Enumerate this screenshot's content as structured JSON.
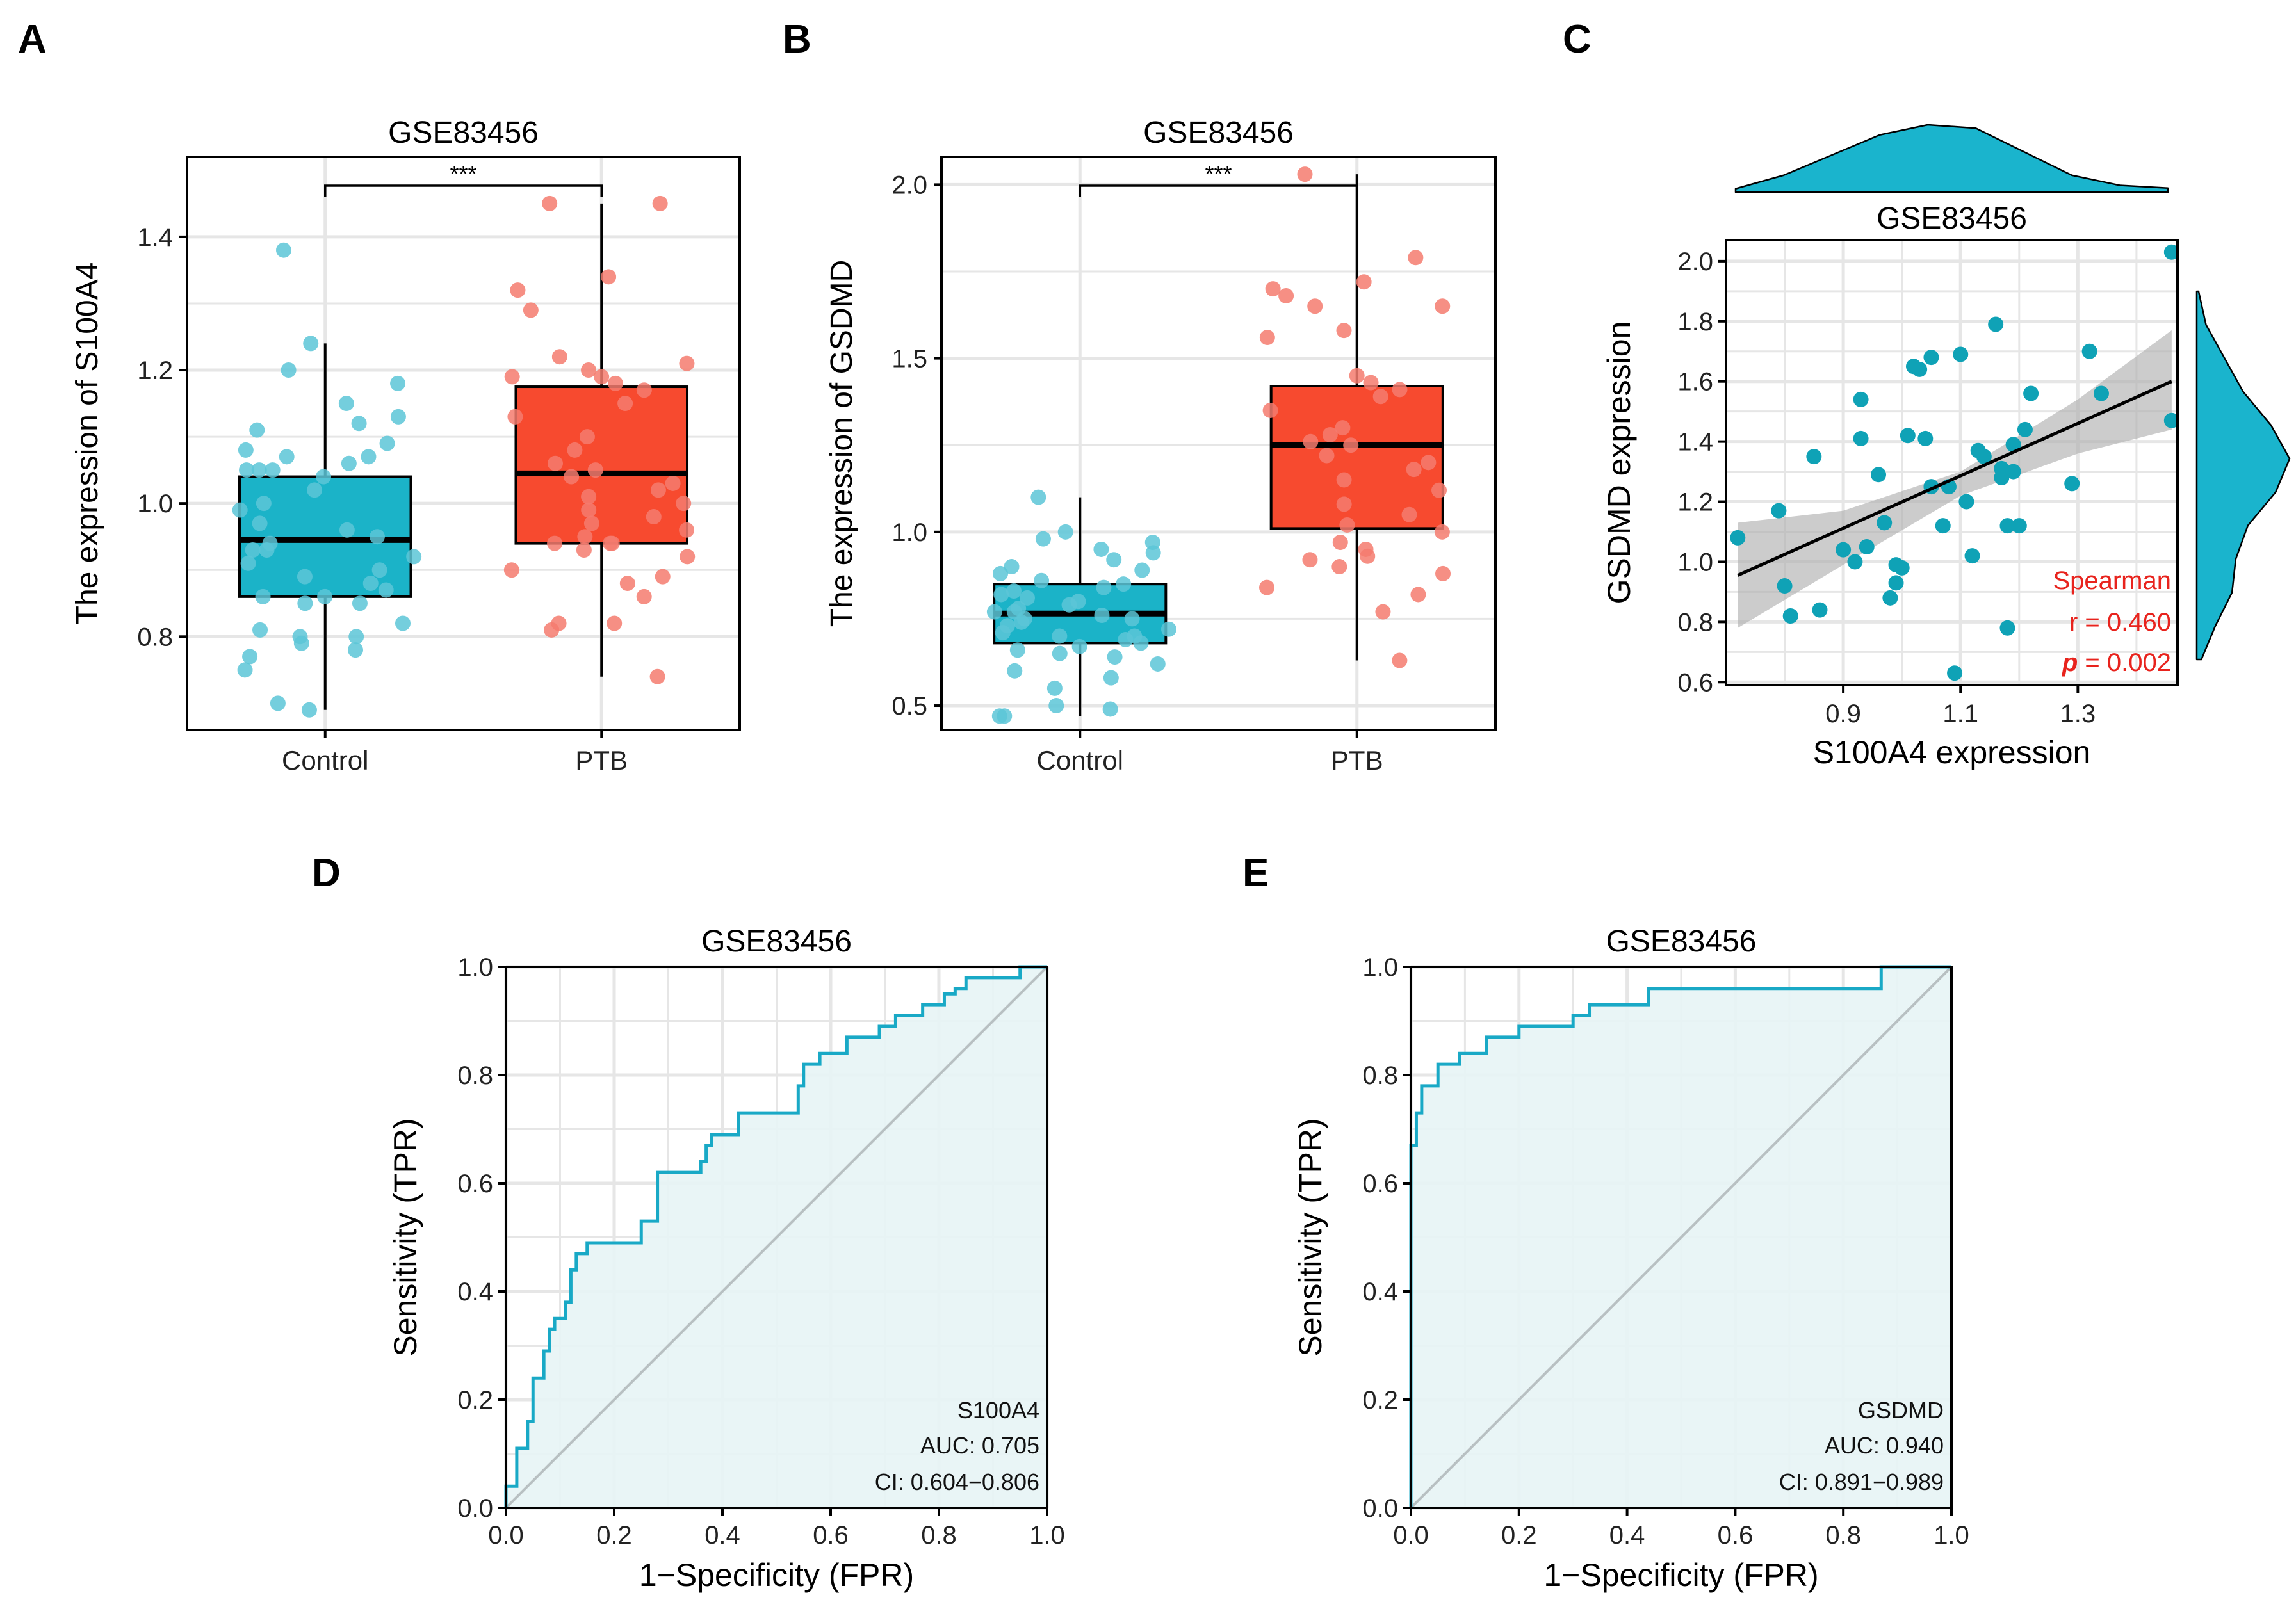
{
  "colors": {
    "control": "#1bb3c8",
    "control_point": "#5cc6d7",
    "ptb": "#f74a2f",
    "ptb_point": "#f47b6f",
    "roc_line": "#19a9c6",
    "roc_fill": "#e7f4f5",
    "diagonal": "#b8c0c2",
    "grid": "#e6e6e6",
    "scatter_point": "#0fa2b6",
    "ci_band": "#b0b0b0",
    "density": "#1ab4cd",
    "spearman_text": "#e8231d"
  },
  "chart_data": [
    {
      "panel": "A",
      "type": "box",
      "title": "GSE83456",
      "ylabel": "The expression of S100A4",
      "xlabel": "",
      "categories": [
        "Control",
        "PTB"
      ],
      "ylim": [
        0.66,
        1.52
      ],
      "yticks": [
        0.8,
        1.0,
        1.2,
        1.4
      ],
      "significance": "***",
      "boxes": [
        {
          "name": "Control",
          "min": 0.69,
          "q1": 0.86,
          "median": 0.945,
          "q3": 1.04,
          "max": 1.24
        },
        {
          "name": "PTB",
          "min": 0.74,
          "q1": 0.94,
          "median": 1.045,
          "q3": 1.175,
          "max": 1.45
        }
      ],
      "points": [
        [
          1.38,
          1.24,
          1.2,
          1.18,
          1.15,
          1.13,
          1.12,
          1.11,
          1.09,
          1.08,
          1.07,
          1.07,
          1.06,
          1.05,
          1.05,
          1.05,
          1.04,
          1.02,
          1.0,
          0.99,
          0.97,
          0.96,
          0.95,
          0.94,
          0.93,
          0.93,
          0.92,
          0.91,
          0.9,
          0.89,
          0.88,
          0.87,
          0.86,
          0.86,
          0.85,
          0.85,
          0.82,
          0.81,
          0.8,
          0.8,
          0.79,
          0.78,
          0.77,
          0.75,
          0.7,
          0.69
        ],
        [
          1.45,
          1.45,
          1.34,
          1.32,
          1.29,
          1.22,
          1.21,
          1.2,
          1.19,
          1.19,
          1.18,
          1.17,
          1.15,
          1.13,
          1.1,
          1.08,
          1.06,
          1.05,
          1.04,
          1.03,
          1.02,
          1.01,
          1.0,
          0.99,
          0.98,
          0.97,
          0.96,
          0.95,
          0.94,
          0.94,
          0.94,
          0.93,
          0.92,
          0.9,
          0.89,
          0.88,
          0.86,
          0.82,
          0.82,
          0.81,
          0.74
        ]
      ]
    },
    {
      "panel": "B",
      "type": "box",
      "title": "GSE83456",
      "ylabel": "The expression of GSDMD",
      "xlabel": "",
      "categories": [
        "Control",
        "PTB"
      ],
      "ylim": [
        0.43,
        2.08
      ],
      "yticks": [
        0.5,
        1.0,
        1.5,
        2.0
      ],
      "significance": "***",
      "boxes": [
        {
          "name": "Control",
          "min": 0.47,
          "q1": 0.68,
          "median": 0.765,
          "q3": 0.85,
          "max": 1.1
        },
        {
          "name": "PTB",
          "min": 0.63,
          "q1": 1.01,
          "median": 1.25,
          "q3": 1.42,
          "max": 2.03
        }
      ],
      "points": [
        [
          1.1,
          1.0,
          0.98,
          0.97,
          0.95,
          0.94,
          0.92,
          0.9,
          0.89,
          0.88,
          0.86,
          0.85,
          0.84,
          0.83,
          0.82,
          0.81,
          0.8,
          0.79,
          0.78,
          0.77,
          0.77,
          0.76,
          0.75,
          0.75,
          0.74,
          0.73,
          0.72,
          0.71,
          0.7,
          0.7,
          0.69,
          0.68,
          0.67,
          0.66,
          0.65,
          0.64,
          0.62,
          0.6,
          0.58,
          0.55,
          0.5,
          0.49,
          0.47,
          0.47
        ],
        [
          2.03,
          1.79,
          1.72,
          1.7,
          1.68,
          1.65,
          1.65,
          1.58,
          1.56,
          1.45,
          1.43,
          1.41,
          1.39,
          1.35,
          1.3,
          1.28,
          1.26,
          1.25,
          1.22,
          1.2,
          1.18,
          1.15,
          1.12,
          1.08,
          1.05,
          1.02,
          1.0,
          0.97,
          0.95,
          0.93,
          0.92,
          0.9,
          0.88,
          0.84,
          0.82,
          0.77,
          0.63
        ]
      ]
    },
    {
      "panel": "C",
      "type": "scatter",
      "title": "GSE83456",
      "xlabel": "S100A4 expression",
      "ylabel": "GSDMD expression",
      "xlim": [
        0.7,
        1.47
      ],
      "ylim": [
        0.59,
        2.07
      ],
      "xticks": [
        0.9,
        1.1,
        1.3
      ],
      "yticks": [
        0.6,
        0.8,
        1.0,
        1.2,
        1.4,
        1.6,
        1.8,
        2.0
      ],
      "x": [
        0.72,
        0.79,
        0.8,
        0.81,
        0.85,
        0.86,
        0.9,
        0.92,
        0.93,
        0.93,
        0.94,
        0.96,
        0.97,
        0.98,
        0.99,
        0.99,
        1.0,
        1.01,
        1.02,
        1.03,
        1.04,
        1.05,
        1.05,
        1.07,
        1.08,
        1.09,
        1.1,
        1.11,
        1.12,
        1.13,
        1.14,
        1.16,
        1.17,
        1.17,
        1.18,
        1.18,
        1.19,
        1.19,
        1.2,
        1.21,
        1.22,
        1.29,
        1.32,
        1.34,
        1.46,
        1.46
      ],
      "y": [
        1.08,
        1.17,
        0.92,
        0.82,
        1.35,
        0.84,
        1.04,
        1.0,
        1.54,
        1.41,
        1.05,
        1.29,
        1.13,
        0.88,
        0.93,
        0.99,
        0.98,
        1.42,
        1.65,
        1.64,
        1.41,
        1.25,
        1.68,
        1.12,
        1.25,
        0.63,
        1.69,
        1.2,
        1.02,
        1.37,
        1.35,
        1.79,
        1.28,
        1.31,
        0.78,
        1.12,
        1.3,
        1.39,
        1.12,
        1.44,
        1.56,
        1.26,
        1.7,
        1.56,
        2.03,
        1.47
      ],
      "fit": {
        "x": [
          0.72,
          1.46
        ],
        "y": [
          0.955,
          1.6
        ]
      },
      "ci_band": {
        "x": [
          0.72,
          0.9,
          1.1,
          1.3,
          1.46
        ],
        "lower": [
          0.78,
          0.99,
          1.22,
          1.36,
          1.44
        ],
        "upper": [
          1.13,
          1.17,
          1.3,
          1.54,
          1.77
        ]
      },
      "annotation": {
        "method": "Spearman",
        "r_text": "r = 0.460",
        "p_label": "p",
        "p_text": " = 0.002"
      },
      "density_top": [
        0.05,
        0.25,
        0.55,
        0.85,
        1.0,
        0.95,
        0.6,
        0.25,
        0.1,
        0.06
      ],
      "density_right": [
        0.05,
        0.2,
        0.38,
        0.42,
        0.55,
        0.85,
        1.0,
        0.8,
        0.5,
        0.3,
        0.1,
        0.02
      ]
    },
    {
      "panel": "D",
      "type": "roc",
      "title": "GSE83456",
      "xlabel": "1−Specificity (FPR)",
      "ylabel": "Sensitivity (TPR)",
      "xlim": [
        0,
        1
      ],
      "ylim": [
        0,
        1
      ],
      "ticks": [
        0.0,
        0.2,
        0.4,
        0.6,
        0.8,
        1.0
      ],
      "legend": {
        "label": "S100A4",
        "auc": "AUC: 0.705",
        "ci": "CI: 0.604−0.806"
      },
      "fpr": [
        0.0,
        0.0,
        0.02,
        0.02,
        0.04,
        0.04,
        0.05,
        0.05,
        0.07,
        0.07,
        0.08,
        0.08,
        0.09,
        0.09,
        0.11,
        0.11,
        0.12,
        0.12,
        0.13,
        0.13,
        0.15,
        0.15,
        0.25,
        0.25,
        0.28,
        0.28,
        0.36,
        0.36,
        0.37,
        0.37,
        0.38,
        0.38,
        0.43,
        0.43,
        0.54,
        0.54,
        0.55,
        0.55,
        0.58,
        0.58,
        0.63,
        0.63,
        0.69,
        0.69,
        0.72,
        0.72,
        0.77,
        0.77,
        0.81,
        0.81,
        0.83,
        0.83,
        0.85,
        0.85,
        0.87,
        0.87,
        0.95,
        0.95,
        0.98,
        0.98,
        1.0
      ],
      "tpr": [
        0.0,
        0.04,
        0.04,
        0.11,
        0.11,
        0.16,
        0.16,
        0.24,
        0.24,
        0.29,
        0.29,
        0.33,
        0.33,
        0.35,
        0.35,
        0.38,
        0.38,
        0.44,
        0.44,
        0.47,
        0.47,
        0.49,
        0.49,
        0.53,
        0.53,
        0.62,
        0.62,
        0.64,
        0.64,
        0.67,
        0.67,
        0.69,
        0.69,
        0.73,
        0.73,
        0.78,
        0.78,
        0.82,
        0.82,
        0.84,
        0.84,
        0.87,
        0.87,
        0.89,
        0.89,
        0.91,
        0.91,
        0.93,
        0.93,
        0.95,
        0.95,
        0.96,
        0.96,
        0.98,
        0.98,
        0.98,
        0.98,
        1.0,
        1.0,
        1.0,
        1.0
      ]
    },
    {
      "panel": "E",
      "type": "roc",
      "title": "GSE83456",
      "xlabel": "1−Specificity (FPR)",
      "ylabel": "Sensitivity (TPR)",
      "xlim": [
        0,
        1
      ],
      "ylim": [
        0,
        1
      ],
      "ticks": [
        0.0,
        0.2,
        0.4,
        0.6,
        0.8,
        1.0
      ],
      "legend": {
        "label": "GSDMD",
        "auc": "AUC: 0.940",
        "ci": "CI: 0.891−0.989"
      },
      "fpr": [
        0.0,
        0.0,
        0.01,
        0.01,
        0.02,
        0.02,
        0.05,
        0.05,
        0.09,
        0.09,
        0.14,
        0.14,
        0.2,
        0.2,
        0.3,
        0.3,
        0.33,
        0.33,
        0.44,
        0.44,
        0.87,
        0.87,
        1.0
      ],
      "tpr": [
        0.0,
        0.67,
        0.67,
        0.73,
        0.73,
        0.78,
        0.78,
        0.82,
        0.82,
        0.84,
        0.84,
        0.87,
        0.87,
        0.89,
        0.89,
        0.91,
        0.91,
        0.93,
        0.93,
        0.96,
        0.96,
        1.0,
        1.0
      ]
    }
  ],
  "panel_labels": [
    "A",
    "B",
    "C",
    "D",
    "E"
  ]
}
